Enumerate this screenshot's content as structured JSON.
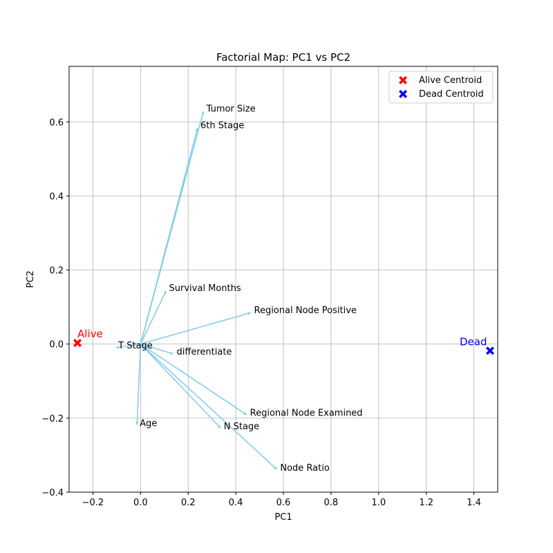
{
  "chart_data": {
    "type": "scatter",
    "title": "Factorial Map: PC1 vs PC2",
    "xlabel": "PC1",
    "ylabel": "PC2",
    "xlim": [
      -0.3,
      1.5
    ],
    "ylim": [
      -0.4,
      0.75
    ],
    "xticks": [
      "−0.2",
      "0.0",
      "0.2",
      "0.4",
      "0.6",
      "0.8",
      "1.0",
      "1.2",
      "1.4"
    ],
    "yticks": [
      "−0.4",
      "−0.2",
      "0.0",
      "0.2",
      "0.4",
      "0.6"
    ],
    "xtick_values": [
      -0.2,
      0.0,
      0.2,
      0.4,
      0.6,
      0.8,
      1.0,
      1.2,
      1.4
    ],
    "ytick_values": [
      -0.4,
      -0.2,
      0.0,
      0.2,
      0.4,
      0.6
    ],
    "grid": true,
    "legend_position": "top-right",
    "arrow_color": "#87ceeb",
    "variables": [
      {
        "name": "Tumor Size",
        "x": 0.265,
        "y": 0.63
      },
      {
        "name": "6th Stage",
        "x": 0.24,
        "y": 0.585
      },
      {
        "name": "Survival Months",
        "x": 0.108,
        "y": 0.145
      },
      {
        "name": "Regional Node Positive",
        "x": 0.465,
        "y": 0.085
      },
      {
        "name": "T Stage",
        "x": -0.105,
        "y": -0.01
      },
      {
        "name": "differentiate",
        "x": 0.14,
        "y": -0.027
      },
      {
        "name": "Age",
        "x": -0.015,
        "y": -0.22
      },
      {
        "name": "Regional Node Examined",
        "x": 0.448,
        "y": -0.192
      },
      {
        "name": "N Stage",
        "x": 0.338,
        "y": -0.228
      },
      {
        "name": "Node Ratio",
        "x": 0.575,
        "y": -0.34
      }
    ],
    "centroids": [
      {
        "name": "Alive",
        "legend": "Alive Centroid",
        "x": -0.265,
        "y": 0.003,
        "color": "#ff0000"
      },
      {
        "name": "Dead",
        "legend": "Dead Centroid",
        "x": 1.468,
        "y": -0.018,
        "color": "#0000ff"
      }
    ]
  }
}
